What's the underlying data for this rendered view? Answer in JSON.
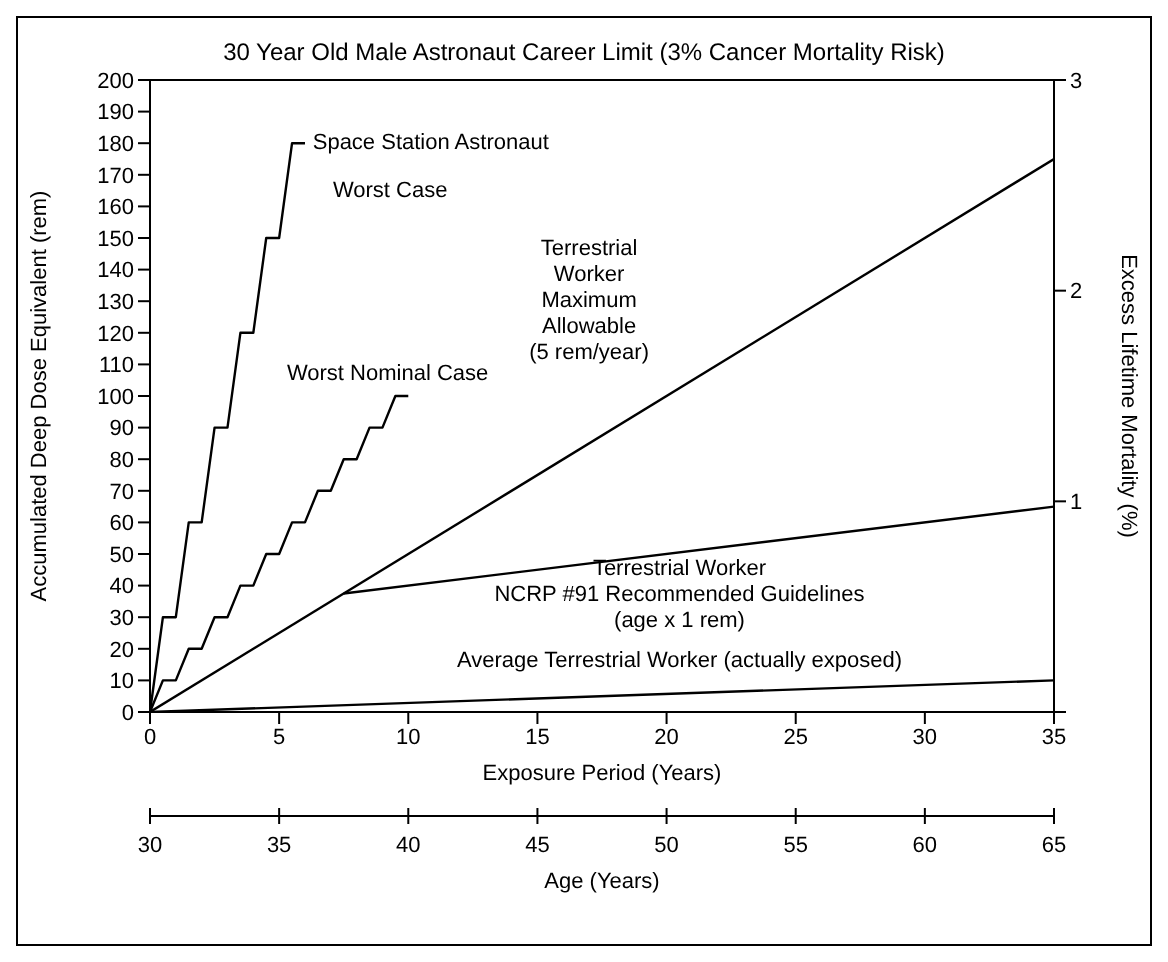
{
  "chart_data": {
    "type": "line",
    "title": "30 Year Old Male Astronaut Career Limit (3% Cancer Mortality Risk)",
    "xlabel": "Exposure Period (Years)",
    "ylabel": "Accumulated Deep Dose Equivalent (rem)",
    "y2label": "Excess Lifetime Mortality (%)",
    "x2label": "Age (Years)",
    "xlim": [
      0,
      35
    ],
    "xticks": [
      0,
      5,
      10,
      15,
      20,
      25,
      30,
      35
    ],
    "ylim": [
      0,
      200
    ],
    "yticks": [
      0,
      10,
      20,
      30,
      40,
      50,
      60,
      70,
      80,
      90,
      100,
      110,
      120,
      130,
      140,
      150,
      160,
      170,
      180,
      190,
      200
    ],
    "y2lim": [
      0,
      3
    ],
    "y2ticks": [
      {
        "value": 0,
        "label": null
      },
      1,
      2,
      3
    ],
    "x2lim": [
      30,
      65
    ],
    "x2ticks": [
      30,
      35,
      40,
      45,
      50,
      55,
      60,
      65
    ],
    "marker": "none",
    "line_style": "solid",
    "series": [
      {
        "color": "#000000",
        "x": [
          0,
          0.5,
          1,
          1.5,
          2,
          2.5,
          3,
          3.5,
          4,
          4.5,
          5,
          5.5,
          6
        ],
        "values": [
          0,
          30,
          30,
          60,
          60,
          90,
          90,
          120,
          120,
          150,
          150,
          180,
          180
        ]
      },
      {
        "color": "#000000",
        "x": [
          0,
          0.5,
          1,
          1.5,
          2,
          2.5,
          3,
          3.5,
          4,
          4.5,
          5,
          5.5,
          6,
          6.5,
          7,
          7.5,
          8,
          8.5,
          9,
          9.5,
          10
        ],
        "values": [
          0,
          10,
          10,
          20,
          20,
          30,
          30,
          40,
          40,
          50,
          50,
          60,
          60,
          70,
          70,
          80,
          80,
          90,
          90,
          100,
          100
        ]
      },
      {
        "color": "#000000",
        "x": [
          0,
          35
        ],
        "values": [
          0,
          175
        ]
      },
      {
        "color": "#000000",
        "x": [
          7.5,
          35
        ],
        "values": [
          37.5,
          65
        ]
      },
      {
        "color": "#000000",
        "x": [
          0,
          35
        ],
        "values": [
          0,
          10
        ]
      }
    ],
    "annotations": [
      "Space Station Astronaut",
      "Worst Case",
      "Worst Nominal Case",
      "Terrestrial\nWorker\nMaximum\nAllowable\n(5 rem/year)",
      "Terrestrial Worker\nNCRP #91 Recommended Guidelines\n(age x 1 rem)",
      "Average Terrestrial Worker (actually exposed)"
    ]
  }
}
